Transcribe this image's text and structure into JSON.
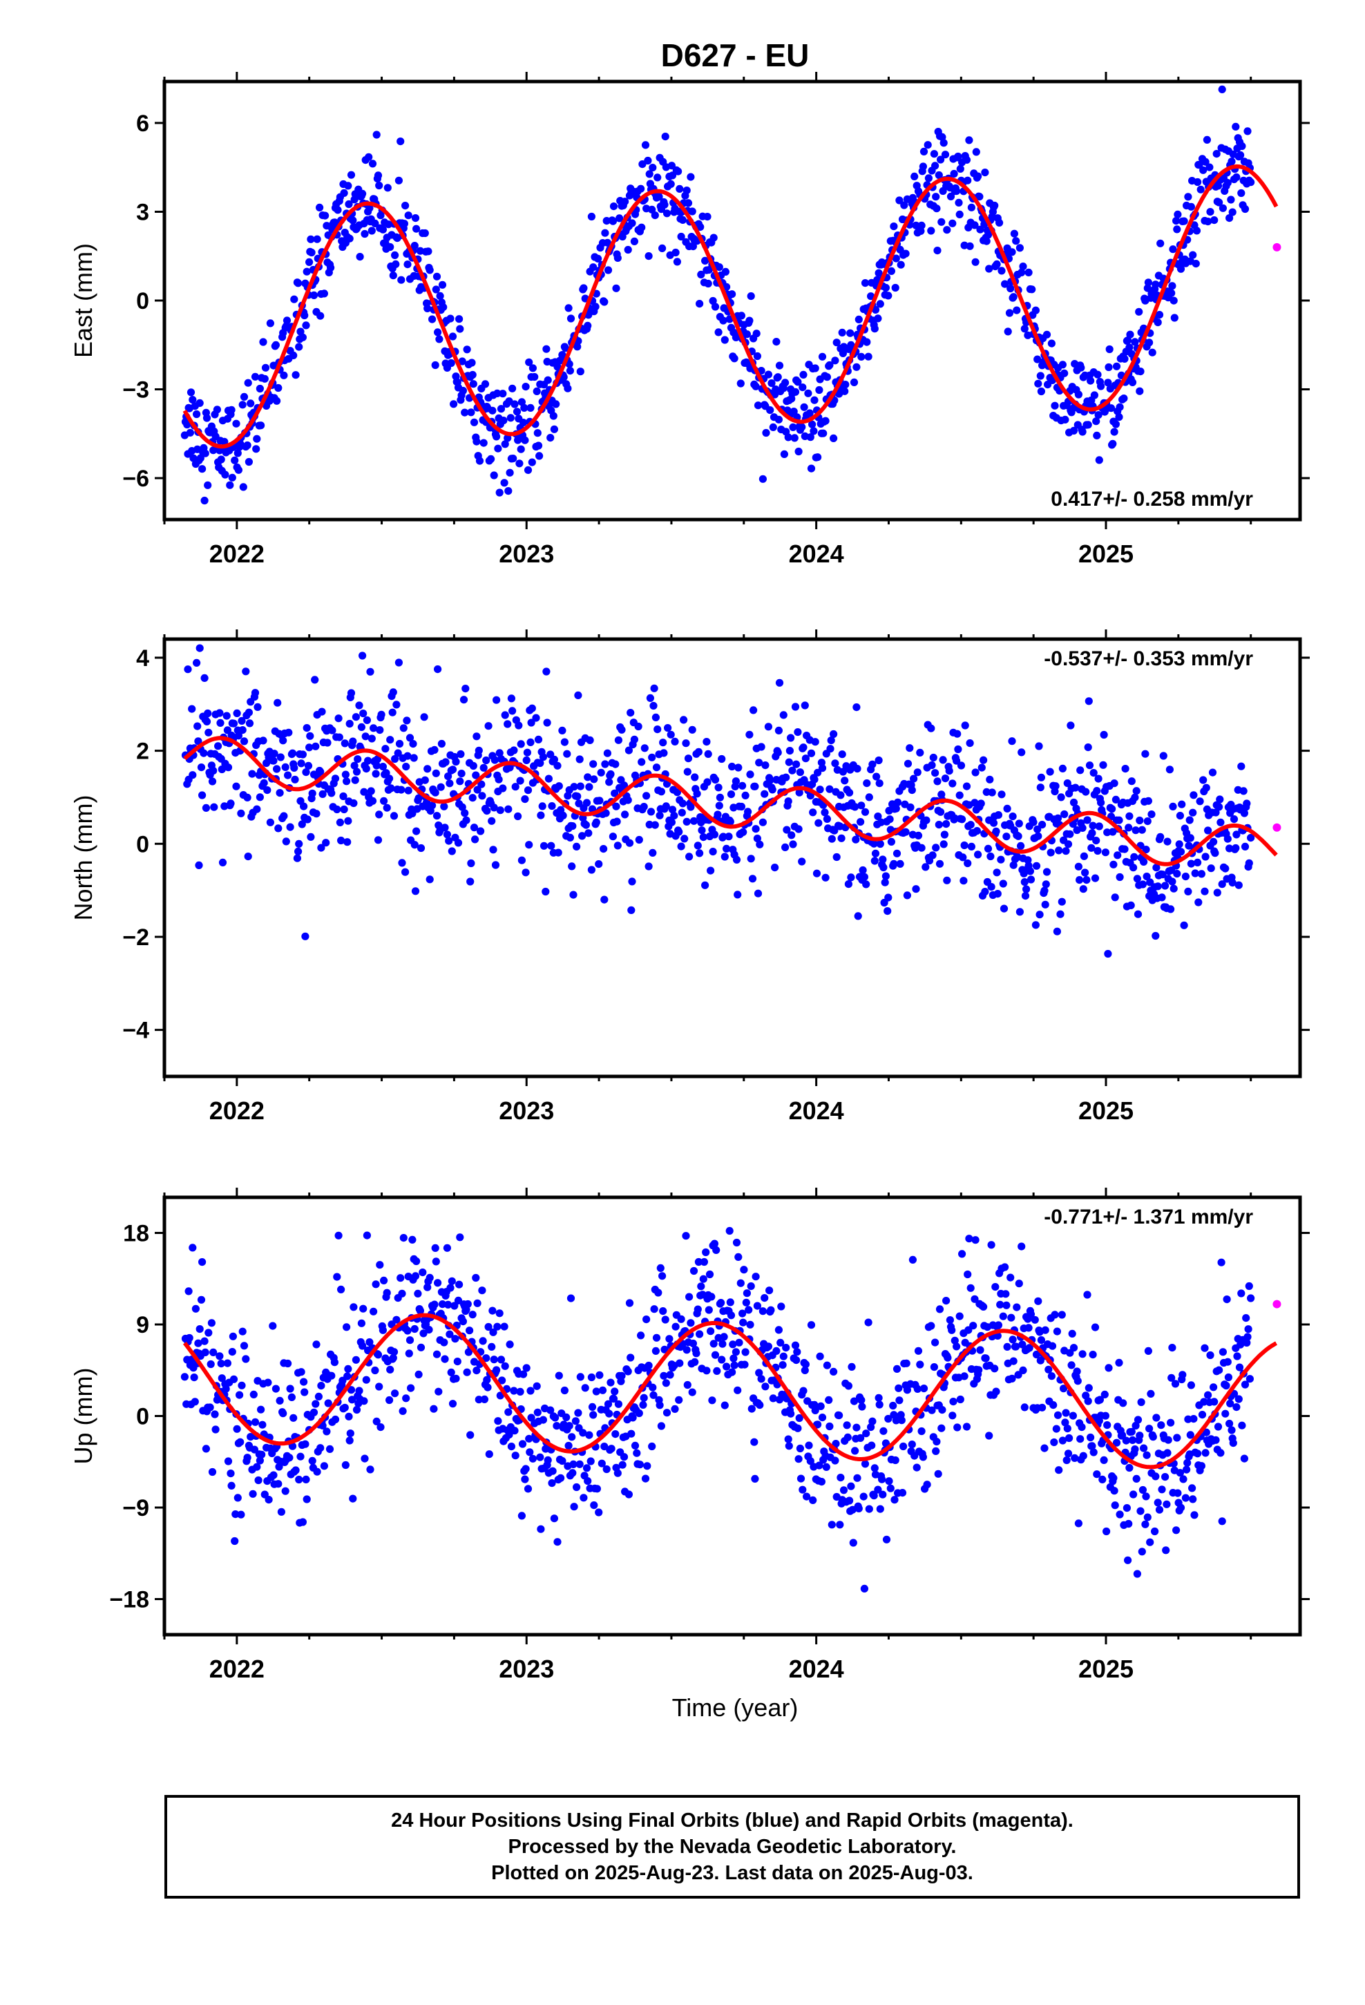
{
  "title": "D627 - EU",
  "colors": {
    "final": "#0000ff",
    "rapid": "#ff00ff",
    "model": "#ff0000"
  },
  "xlabel": "Time (year)",
  "footer": {
    "line1": "24 Hour Positions Using Final Orbits (blue) and Rapid Orbits (magenta).",
    "line2": "Processed by the Nevada Geodetic Laboratory.",
    "line3": "Plotted on 2025-Aug-23. Last data on 2025-Aug-03."
  },
  "chart_data": [
    {
      "type": "scatter",
      "component": "east",
      "ylabel": "East (mm)",
      "rate_text": "0.417+/- 0.258 mm/yr",
      "xlim": [
        2021.75,
        2025.67
      ],
      "ylim": [
        -7.4,
        7.4
      ],
      "xticks": [
        2022,
        2023,
        2024,
        2025
      ],
      "yticks": [
        -6,
        -3,
        0,
        3,
        6
      ],
      "model": {
        "trend": 0.417,
        "offset": -0.2,
        "annual_amp": 4.0,
        "annual_phase": 2022.45,
        "semiannual_amp": 0.0,
        "semiannual_phase": 2022.2
      },
      "noise_sd": 0.8,
      "rapid_point": {
        "x": 2025.59,
        "y": 1.8
      }
    },
    {
      "type": "scatter",
      "component": "north",
      "ylabel": "North (mm)",
      "rate_text": "-0.537+/- 0.353 mm/yr",
      "xlim": [
        2021.75,
        2025.67
      ],
      "ylim": [
        -5.0,
        4.4
      ],
      "xticks": [
        2022,
        2023,
        2024,
        2025
      ],
      "yticks": [
        -4,
        -2,
        0,
        2,
        4
      ],
      "model": {
        "trend": -0.537,
        "offset": 0.85,
        "annual_amp": 0.0,
        "annual_phase": 2022.0,
        "semiannual_amp": 0.48,
        "semiannual_phase": 2021.95
      },
      "noise_sd": 0.85,
      "rapid_point": {
        "x": 2025.59,
        "y": 0.35
      }
    },
    {
      "type": "scatter",
      "component": "up",
      "ylabel": "Up (mm)",
      "rate_text": "-0.771+/- 1.371 mm/yr",
      "xlim": [
        2021.75,
        2025.67
      ],
      "ylim": [
        -21.5,
        21.5
      ],
      "xticks": [
        2022,
        2023,
        2024,
        2025
      ],
      "yticks": [
        -18,
        -9,
        0,
        9,
        18
      ],
      "model": {
        "trend": -0.771,
        "offset": 2.6,
        "annual_amp": 6.5,
        "annual_phase": 2022.65,
        "semiannual_amp": 0.0,
        "semiannual_phase": 2022.0
      },
      "noise_sd": 4.2,
      "rapid_point": {
        "x": 2025.59,
        "y": 11.0
      }
    }
  ]
}
